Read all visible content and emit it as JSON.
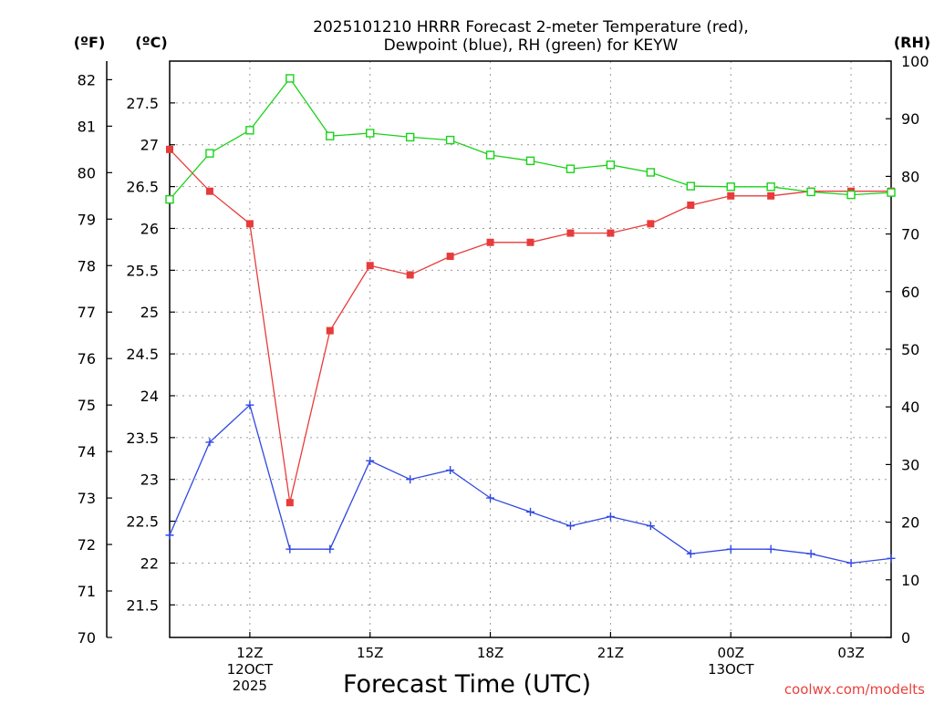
{
  "chart_data": {
    "type": "line",
    "title_lines": [
      "2025101210 HRRR Forecast 2-meter Temperature (red),",
      "Dewpoint (blue), RH (green) for KEYW"
    ],
    "unit_labels": {
      "fahrenheit": "(ºF)",
      "celsius": "(ºC)",
      "rh": "(RH)"
    },
    "xlabel": "Forecast Time (UTC)",
    "credit": "coolwx.com/modelts",
    "x_hours": [
      10,
      11,
      12,
      13,
      14,
      15,
      16,
      17,
      18,
      19,
      20,
      21,
      22,
      23,
      24,
      25,
      26,
      27,
      28
    ],
    "x_range": [
      10,
      28
    ],
    "x_grid_hours": [
      12,
      15,
      18,
      21,
      24,
      27
    ],
    "x_ticks": [
      {
        "hour": 12,
        "lines": [
          "12Z",
          "12OCT",
          "2025"
        ]
      },
      {
        "hour": 15,
        "lines": [
          "15Z"
        ]
      },
      {
        "hour": 18,
        "lines": [
          "18Z"
        ]
      },
      {
        "hour": 21,
        "lines": [
          "21Z"
        ]
      },
      {
        "hour": 24,
        "lines": [
          "00Z",
          "13OCT"
        ]
      },
      {
        "hour": 27,
        "lines": [
          "03Z"
        ]
      }
    ],
    "y_left_f": {
      "range": [
        70,
        82.4
      ],
      "ticks": [
        "70",
        "71",
        "72",
        "73",
        "74",
        "75",
        "76",
        "77",
        "78",
        "79",
        "80",
        "81",
        "82"
      ]
    },
    "y_left_c": {
      "range": [
        21.111,
        28
      ],
      "ticks": [
        "21.5",
        "22",
        "22.5",
        "23",
        "23.5",
        "24",
        "24.5",
        "25",
        "25.5",
        "26",
        "26.5",
        "27",
        "27.5"
      ]
    },
    "y_right_rh": {
      "range": [
        0,
        100
      ],
      "ticks": [
        "0",
        "10",
        "20",
        "30",
        "40",
        "50",
        "60",
        "70",
        "80",
        "90",
        "100"
      ]
    },
    "c_grid": [
      21.5,
      22,
      22.5,
      23,
      23.5,
      24,
      24.5,
      25,
      25.5,
      26,
      26.5,
      27,
      27.5
    ],
    "series": [
      {
        "name": "Temperature",
        "color": "#e83b3b",
        "marker": "filled-square",
        "units": "degF",
        "values": [
          80.5,
          79.6,
          78.9,
          72.9,
          76.6,
          78.0,
          77.8,
          78.2,
          78.5,
          78.5,
          78.7,
          78.7,
          78.9,
          79.3,
          79.5,
          79.5,
          79.6,
          79.6,
          79.6
        ]
      },
      {
        "name": "Dewpoint",
        "color": "#3048e0",
        "marker": "plus",
        "units": "degF",
        "values": [
          72.2,
          74.2,
          75.0,
          71.9,
          71.9,
          73.8,
          73.4,
          73.6,
          73.0,
          72.7,
          72.4,
          72.6,
          72.4,
          71.8,
          71.9,
          71.9,
          71.8,
          71.6,
          71.7
        ]
      },
      {
        "name": "RH",
        "color": "#19d219",
        "marker": "open-square",
        "units": "percent",
        "values": [
          76,
          84,
          88,
          97,
          87,
          87.5,
          86.8,
          86.3,
          83.7,
          82.7,
          81.3,
          82,
          80.7,
          78.3,
          78.2,
          78.2,
          77.3,
          76.8,
          77.2
        ]
      }
    ]
  }
}
